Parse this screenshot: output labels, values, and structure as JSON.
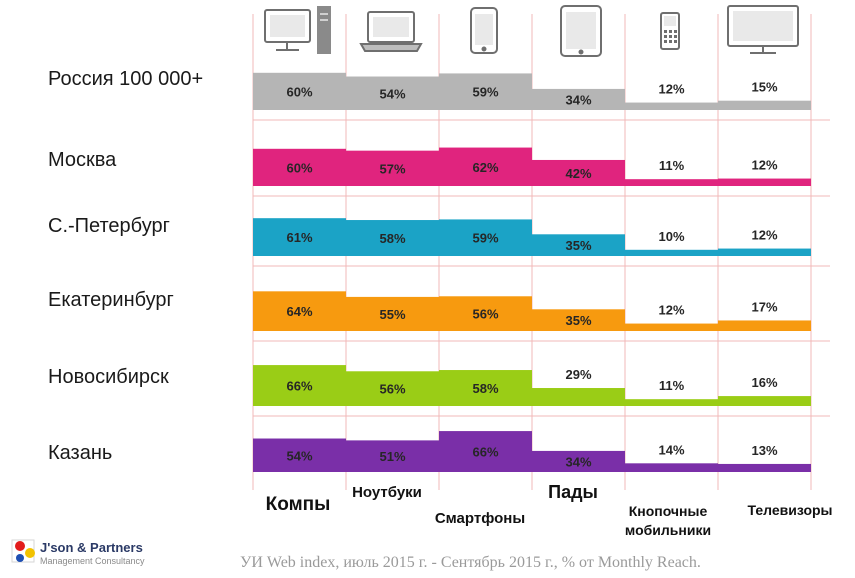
{
  "chart_data": {
    "type": "bar",
    "categories": [
      "Компы",
      "Ноутбуки",
      "Смартфоны",
      "Пады",
      "Кнопочные мобильники",
      "Телевизоры"
    ],
    "category_icons": [
      "desktop-computer-icon",
      "laptop-icon",
      "smartphone-icon",
      "tablet-icon",
      "feature-phone-icon",
      "tv-icon"
    ],
    "series": [
      {
        "name": "Россия 100 000+",
        "color": "#b5b5b5",
        "values": [
          60,
          54,
          59,
          34,
          12,
          15
        ]
      },
      {
        "name": "Москва",
        "color": "#e0247e",
        "values": [
          60,
          57,
          62,
          42,
          11,
          12
        ]
      },
      {
        "name": "С.-Петербург",
        "color": "#1ba3c6",
        "values": [
          61,
          58,
          59,
          35,
          10,
          12
        ]
      },
      {
        "name": "Екатеринбург",
        "color": "#f79a0f",
        "values": [
          64,
          55,
          56,
          35,
          12,
          17
        ]
      },
      {
        "name": "Новосибирск",
        "color": "#9acd16",
        "values": [
          66,
          56,
          58,
          29,
          11,
          16
        ]
      },
      {
        "name": "Казань",
        "color": "#7a2fa8",
        "values": [
          54,
          51,
          66,
          34,
          14,
          13
        ]
      }
    ],
    "value_suffix": "%",
    "source": "УИ Web index, июль 2015 г. - Сентябрь 2015 г., % от Monthly Reach."
  },
  "logo": {
    "name": "J'son & Partners",
    "subtitle": "Management Consultancy"
  },
  "colors": {
    "gridline": "#f2b8b8",
    "axis": "#cccccc"
  }
}
